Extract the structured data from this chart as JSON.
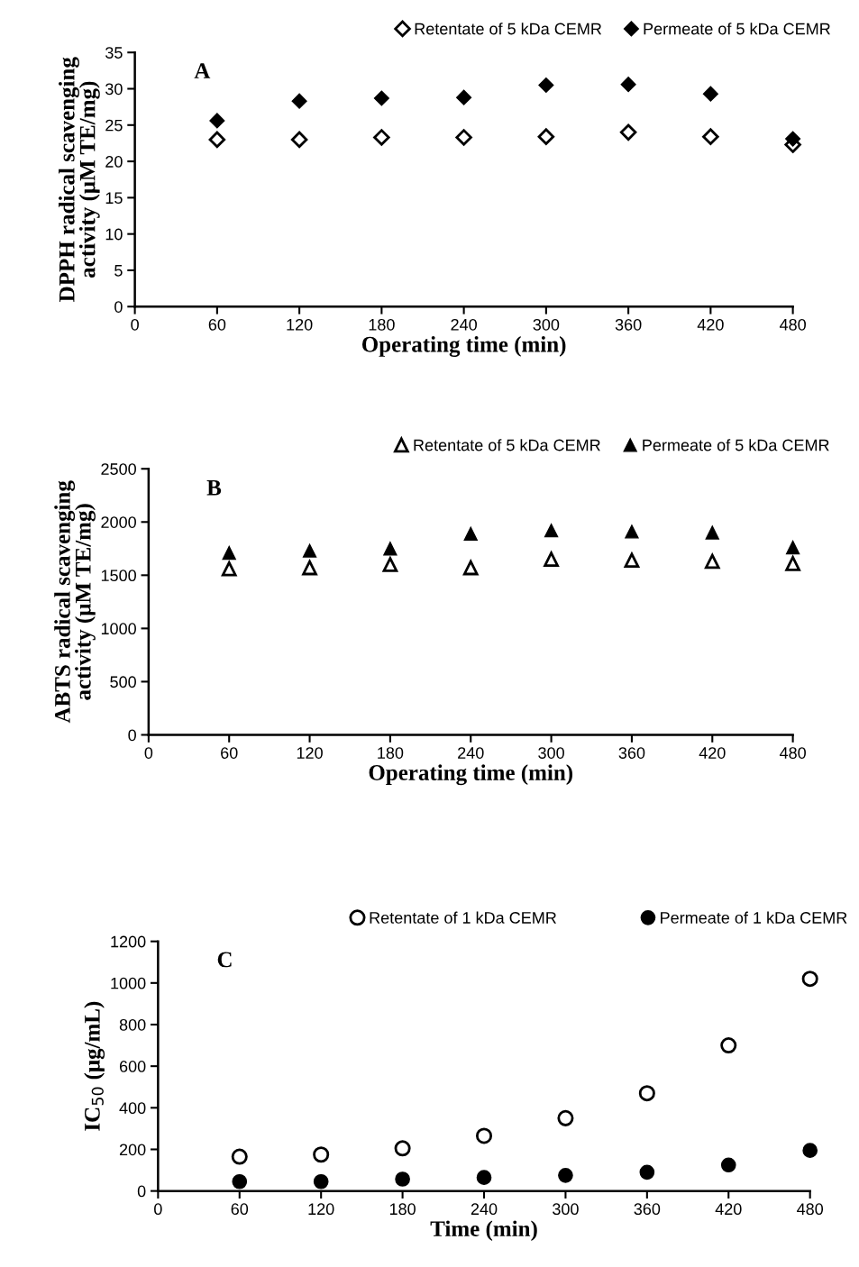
{
  "chart_data": [
    {
      "type": "scatter",
      "annotations": [
        "A"
      ],
      "xlabel": "Operating time (min)",
      "ylabel": "DPPH radical scavenging\nactivity (μM TE/mg)",
      "x": [
        60,
        120,
        180,
        240,
        300,
        360,
        420,
        480
      ],
      "xlim": [
        0,
        480
      ],
      "xticks": [
        0,
        60,
        120,
        180,
        240,
        300,
        360,
        420,
        480
      ],
      "ylim": [
        0,
        35
      ],
      "yticks": [
        0,
        5,
        10,
        15,
        20,
        25,
        30,
        35
      ],
      "grid": false,
      "legend": "top right",
      "marker": "diamond",
      "series": [
        {
          "name": "Retentate of 5 kDa CEMR",
          "color": "#ffffff",
          "values": [
            23,
            23,
            23.3,
            23.3,
            23.4,
            24,
            23.4,
            22.3
          ]
        },
        {
          "name": "Permeate of 5 kDa CEMR",
          "color": "#000000",
          "values": [
            25.6,
            28.3,
            28.7,
            28.8,
            30.5,
            30.6,
            29.3,
            23.1
          ]
        }
      ]
    },
    {
      "type": "scatter",
      "annotations": [
        "B"
      ],
      "xlabel": "Operating time (min)",
      "ylabel": "ABTS radical scavenging\nactivity (μM TE/mg)",
      "x": [
        60,
        120,
        180,
        240,
        300,
        360,
        420,
        480
      ],
      "xlim": [
        0,
        480
      ],
      "xticks": [
        0,
        60,
        120,
        180,
        240,
        300,
        360,
        420,
        480
      ],
      "ylim": [
        0,
        2500
      ],
      "yticks": [
        0,
        500,
        1000,
        1500,
        2000,
        2500
      ],
      "grid": false,
      "legend": "top right",
      "marker": "triangle",
      "series": [
        {
          "name": "Retentate of 5 kDa CEMR",
          "color": "#ffffff",
          "values": [
            1560,
            1570,
            1600,
            1570,
            1650,
            1640,
            1630,
            1610
          ]
        },
        {
          "name": "Permeate of 5 kDa CEMR",
          "color": "#000000",
          "values": [
            1710,
            1730,
            1750,
            1890,
            1920,
            1910,
            1900,
            1760
          ]
        }
      ]
    },
    {
      "type": "scatter",
      "annotations": [
        "C"
      ],
      "xlabel": "Time (min)",
      "ylabel": "IC$_{50}$ (μg/mL)",
      "x": [
        60,
        120,
        180,
        240,
        300,
        360,
        420,
        480
      ],
      "xlim": [
        0,
        480
      ],
      "xticks": [
        0,
        60,
        120,
        180,
        240,
        300,
        360,
        420,
        480
      ],
      "ylim": [
        0,
        1200
      ],
      "yticks": [
        0,
        200,
        400,
        600,
        800,
        1000,
        1200
      ],
      "grid": false,
      "legend": "top right",
      "marker": "circle",
      "series": [
        {
          "name": "Retentate of 1 kDa CEMR",
          "color": "#ffffff",
          "values": [
            165,
            175,
            205,
            265,
            350,
            470,
            700,
            1020
          ]
        },
        {
          "name": "Permeate of 1 kDa CEMR",
          "color": "#000000",
          "values": [
            45,
            45,
            57,
            65,
            75,
            90,
            125,
            195
          ]
        }
      ]
    }
  ]
}
